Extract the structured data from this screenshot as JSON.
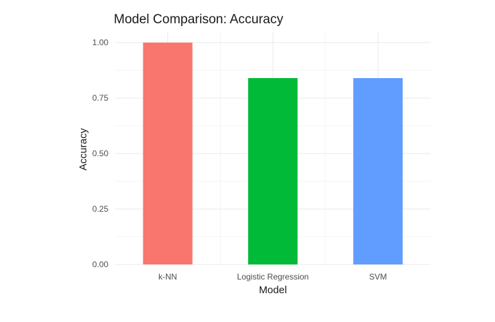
{
  "chart_data": {
    "type": "bar",
    "title": "Model Comparison: Accuracy",
    "xlabel": "Model",
    "ylabel": "Accuracy",
    "categories": [
      "k-NN",
      "Logistic Regression",
      "SVM"
    ],
    "values": [
      1.0,
      0.84,
      0.84
    ],
    "colors": [
      "#F8766D",
      "#00BA38",
      "#619CFF"
    ],
    "ylim": [
      0,
      1.05
    ],
    "yticks": [
      0,
      0.25,
      0.5,
      0.75,
      1.0
    ],
    "ytick_labels": [
      "0.00",
      "0.25",
      "0.50",
      "0.75",
      "1.00"
    ],
    "grid": true,
    "legend": "none"
  }
}
